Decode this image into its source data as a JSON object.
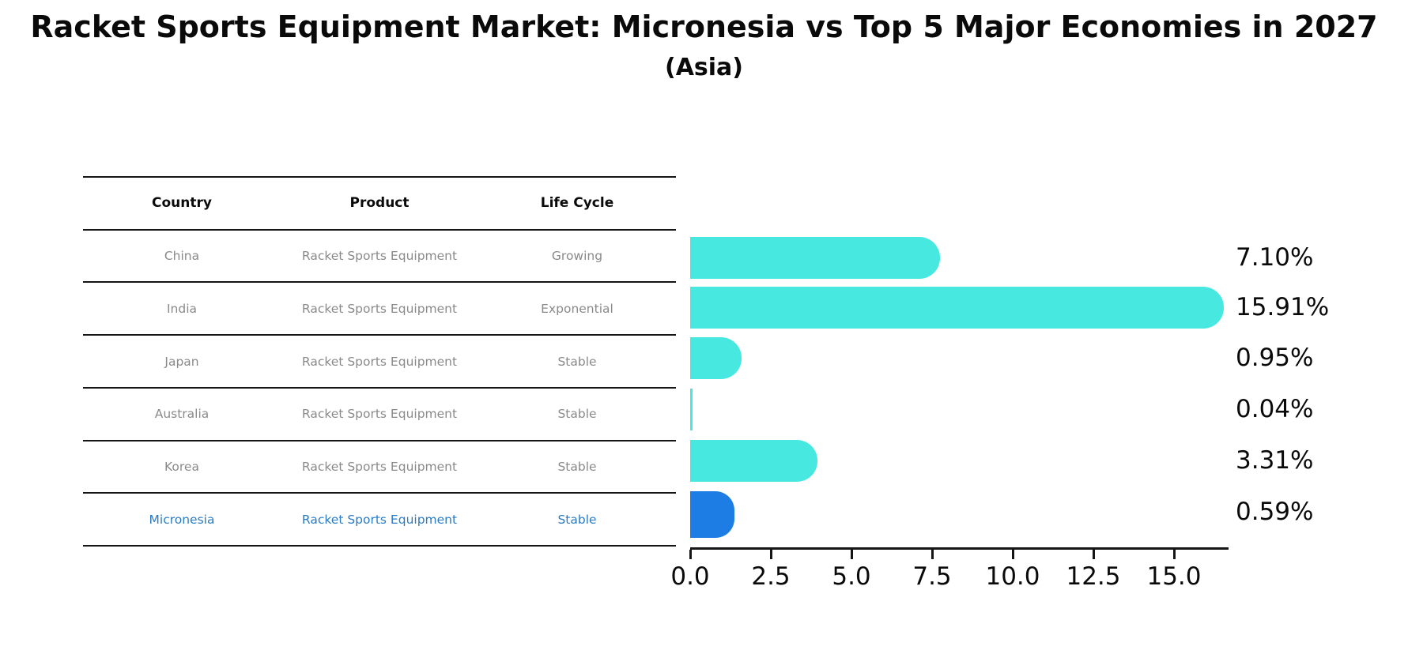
{
  "title": "Racket Sports Equipment Market: Micronesia vs Top 5 Major Economies in 2027",
  "subtitle": "(Asia)",
  "table": {
    "headers": [
      "Country",
      "Product",
      "Life Cycle"
    ],
    "rows": [
      {
        "country": "China",
        "product": "Racket Sports Equipment",
        "life_cycle": "Growing"
      },
      {
        "country": "India",
        "product": "Racket Sports Equipment",
        "life_cycle": "Exponential"
      },
      {
        "country": "Japan",
        "product": "Racket Sports Equipment",
        "life_cycle": "Stable"
      },
      {
        "country": "Australia",
        "product": "Racket Sports Equipment",
        "life_cycle": "Stable"
      },
      {
        "country": "Korea",
        "product": "Racket Sports Equipment",
        "life_cycle": "Stable"
      },
      {
        "country": "Micronesia",
        "product": "Racket Sports Equipment",
        "life_cycle": "Stable"
      }
    ]
  },
  "chart_data": {
    "type": "bar",
    "orientation": "horizontal",
    "title": "Racket Sports Equipment Market: Micronesia vs Top 5 Major Economies in 2027 (Asia)",
    "categories": [
      "China",
      "India",
      "Japan",
      "Australia",
      "Korea",
      "Micronesia"
    ],
    "values": [
      7.1,
      15.91,
      0.95,
      0.04,
      3.31,
      0.59
    ],
    "value_labels": [
      "7.10%",
      "15.91%",
      "0.95%",
      "0.04%",
      "3.31%",
      "0.59%"
    ],
    "x_ticks": [
      "0.0",
      "2.5",
      "5.0",
      "7.5",
      "10.0",
      "12.5",
      "15.0"
    ],
    "x_tick_values": [
      0,
      2.5,
      5,
      7.5,
      10,
      12.5,
      15
    ],
    "xlim": [
      0,
      16.7
    ],
    "xlabel": "",
    "ylabel": "",
    "grid": false,
    "legend": null,
    "highlight_index": 5,
    "bar_color": "#46E8E0",
    "highlight_color": "#1E7DE5"
  },
  "colors": {
    "bar": "#46E8E0",
    "highlight": "#1E7DE5",
    "highlight_text": "#2B7CC4",
    "cell_text": "#8A8A8A",
    "axis": "#151515",
    "title_text": "#0A0A0A"
  }
}
